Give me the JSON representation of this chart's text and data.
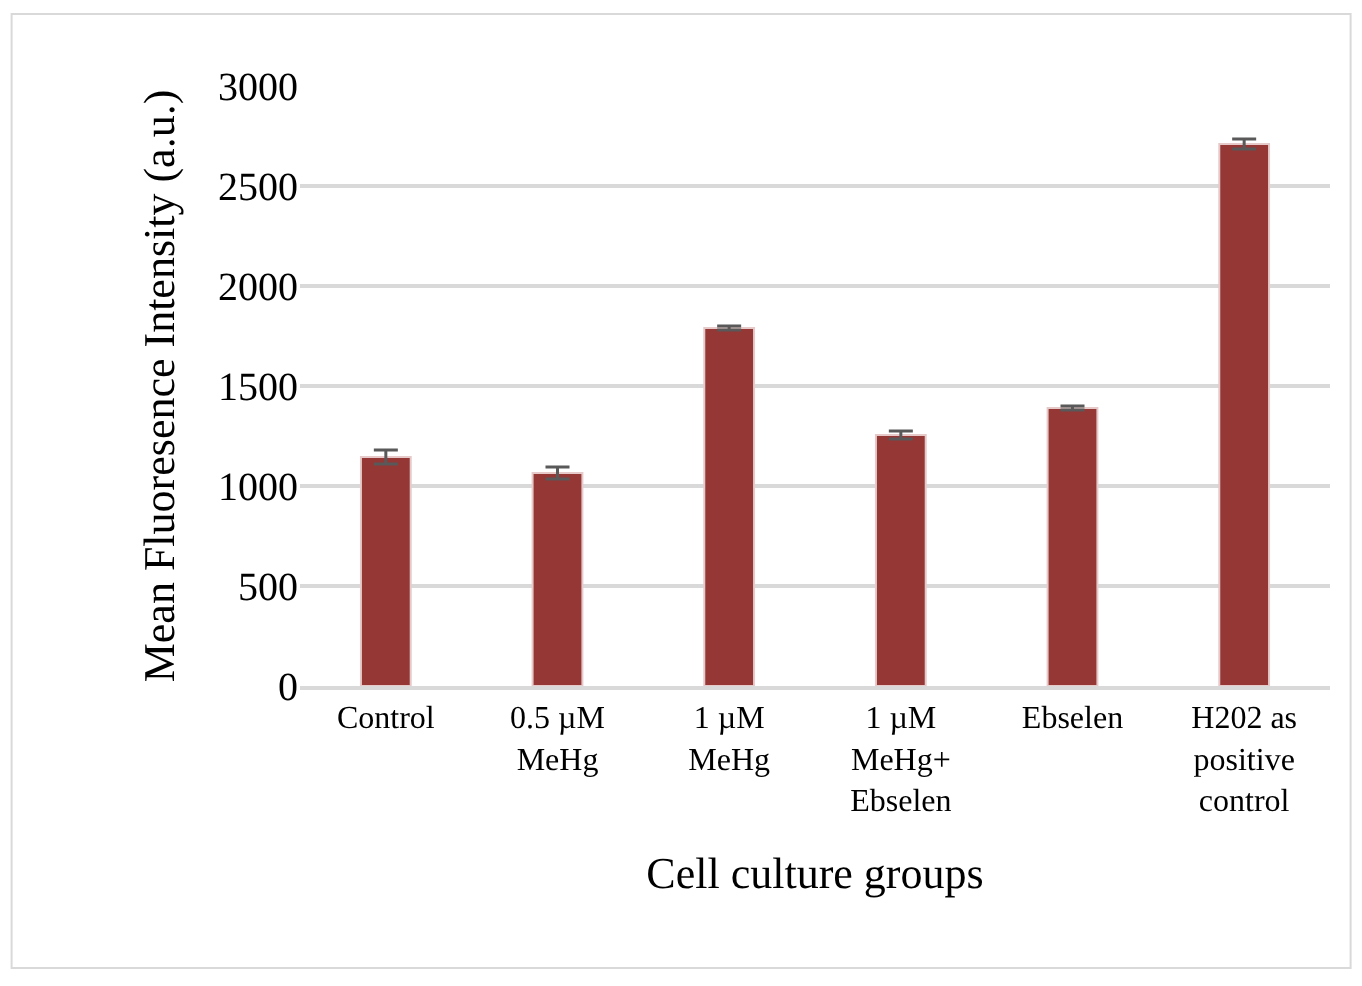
{
  "chart_data": {
    "type": "bar",
    "xlabel": "Cell culture groups",
    "ylabel": "Mean Fluoresence Intensity (a.u.)",
    "categories": [
      "Control",
      "0.5 µM MeHg",
      "1 µM MeHg",
      "1 µM MeHg+ Ebselen",
      "Ebselen",
      "H202 as positive control"
    ],
    "values": [
      1145,
      1065,
      1790,
      1255,
      1390,
      2710
    ],
    "errors": [
      35,
      30,
      10,
      20,
      10,
      25
    ],
    "color": "#953735",
    "ylim": [
      0,
      3000
    ],
    "yticks": [
      0,
      500,
      1000,
      1500,
      2000,
      2500,
      3000
    ],
    "grid": "y"
  }
}
